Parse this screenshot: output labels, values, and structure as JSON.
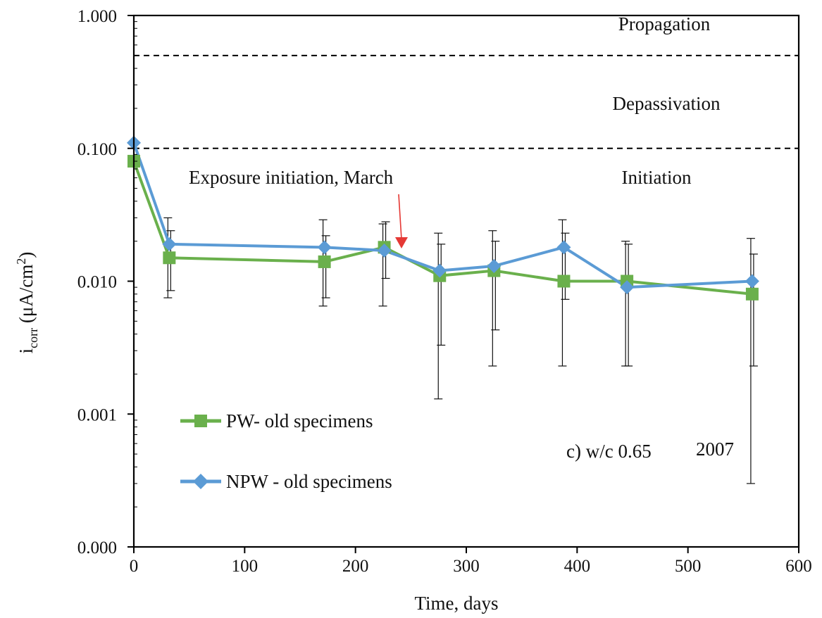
{
  "chart_data": {
    "type": "line",
    "xlabel": "Time, days",
    "ylabel": {
      "prefix": "i",
      "subscript": "corr",
      "middle": " (μA/cm",
      "superscript": "2",
      "suffix": ")"
    },
    "xlim": [
      0,
      600
    ],
    "ylim": [
      0.0001,
      1
    ],
    "yscale": "log",
    "x_ticks": [
      0,
      100,
      200,
      300,
      400,
      500,
      600
    ],
    "x_tick_labels": [
      "0",
      "100",
      "200",
      "300",
      "400",
      "500",
      "600"
    ],
    "y_ticks": [
      0.0001,
      0.001,
      0.01,
      0.1,
      1
    ],
    "y_tick_labels": [
      "0.000",
      "0.001",
      "0.010",
      "0.100",
      "1.000"
    ],
    "grid": false,
    "legend_position": "bottom-left",
    "thresholds": [
      0.5,
      0.1
    ],
    "region_labels": [
      "Propagation",
      "Depassivation",
      "Initiation"
    ],
    "annotations": {
      "exposure_text": "Exposure initiation, March",
      "exposure_x": 242,
      "panel_label": "c)  w/c 0.65",
      "year": "2007"
    },
    "series": [
      {
        "name": "PW- old specimens",
        "color": "#6ab04c",
        "marker": "square",
        "x": [
          0,
          32,
          172,
          226,
          276,
          325,
          388,
          445,
          558
        ],
        "y": [
          0.08,
          0.015,
          0.014,
          0.018,
          0.011,
          0.012,
          0.01,
          0.01,
          0.008
        ],
        "err_low": [
          null,
          0.0075,
          0.0065,
          0.0065,
          0.0013,
          0.0023,
          0.0023,
          0.0023,
          0.0003
        ],
        "err_high": [
          null,
          0.03,
          0.029,
          0.027,
          0.023,
          0.024,
          0.029,
          0.02,
          0.021
        ]
      },
      {
        "name": "NPW - old specimens",
        "color": "#5b9bd5",
        "marker": "diamond",
        "x": [
          0,
          32,
          172,
          226,
          276,
          325,
          388,
          445,
          558
        ],
        "y": [
          0.11,
          0.019,
          0.018,
          0.017,
          0.012,
          0.013,
          0.018,
          0.009,
          0.01
        ],
        "err_low": [
          null,
          0.0085,
          0.0075,
          0.0105,
          0.0033,
          0.0043,
          0.0073,
          0.0023,
          0.0023
        ],
        "err_high": [
          null,
          0.024,
          0.022,
          0.028,
          0.019,
          0.02,
          0.023,
          0.019,
          0.016
        ]
      }
    ]
  }
}
